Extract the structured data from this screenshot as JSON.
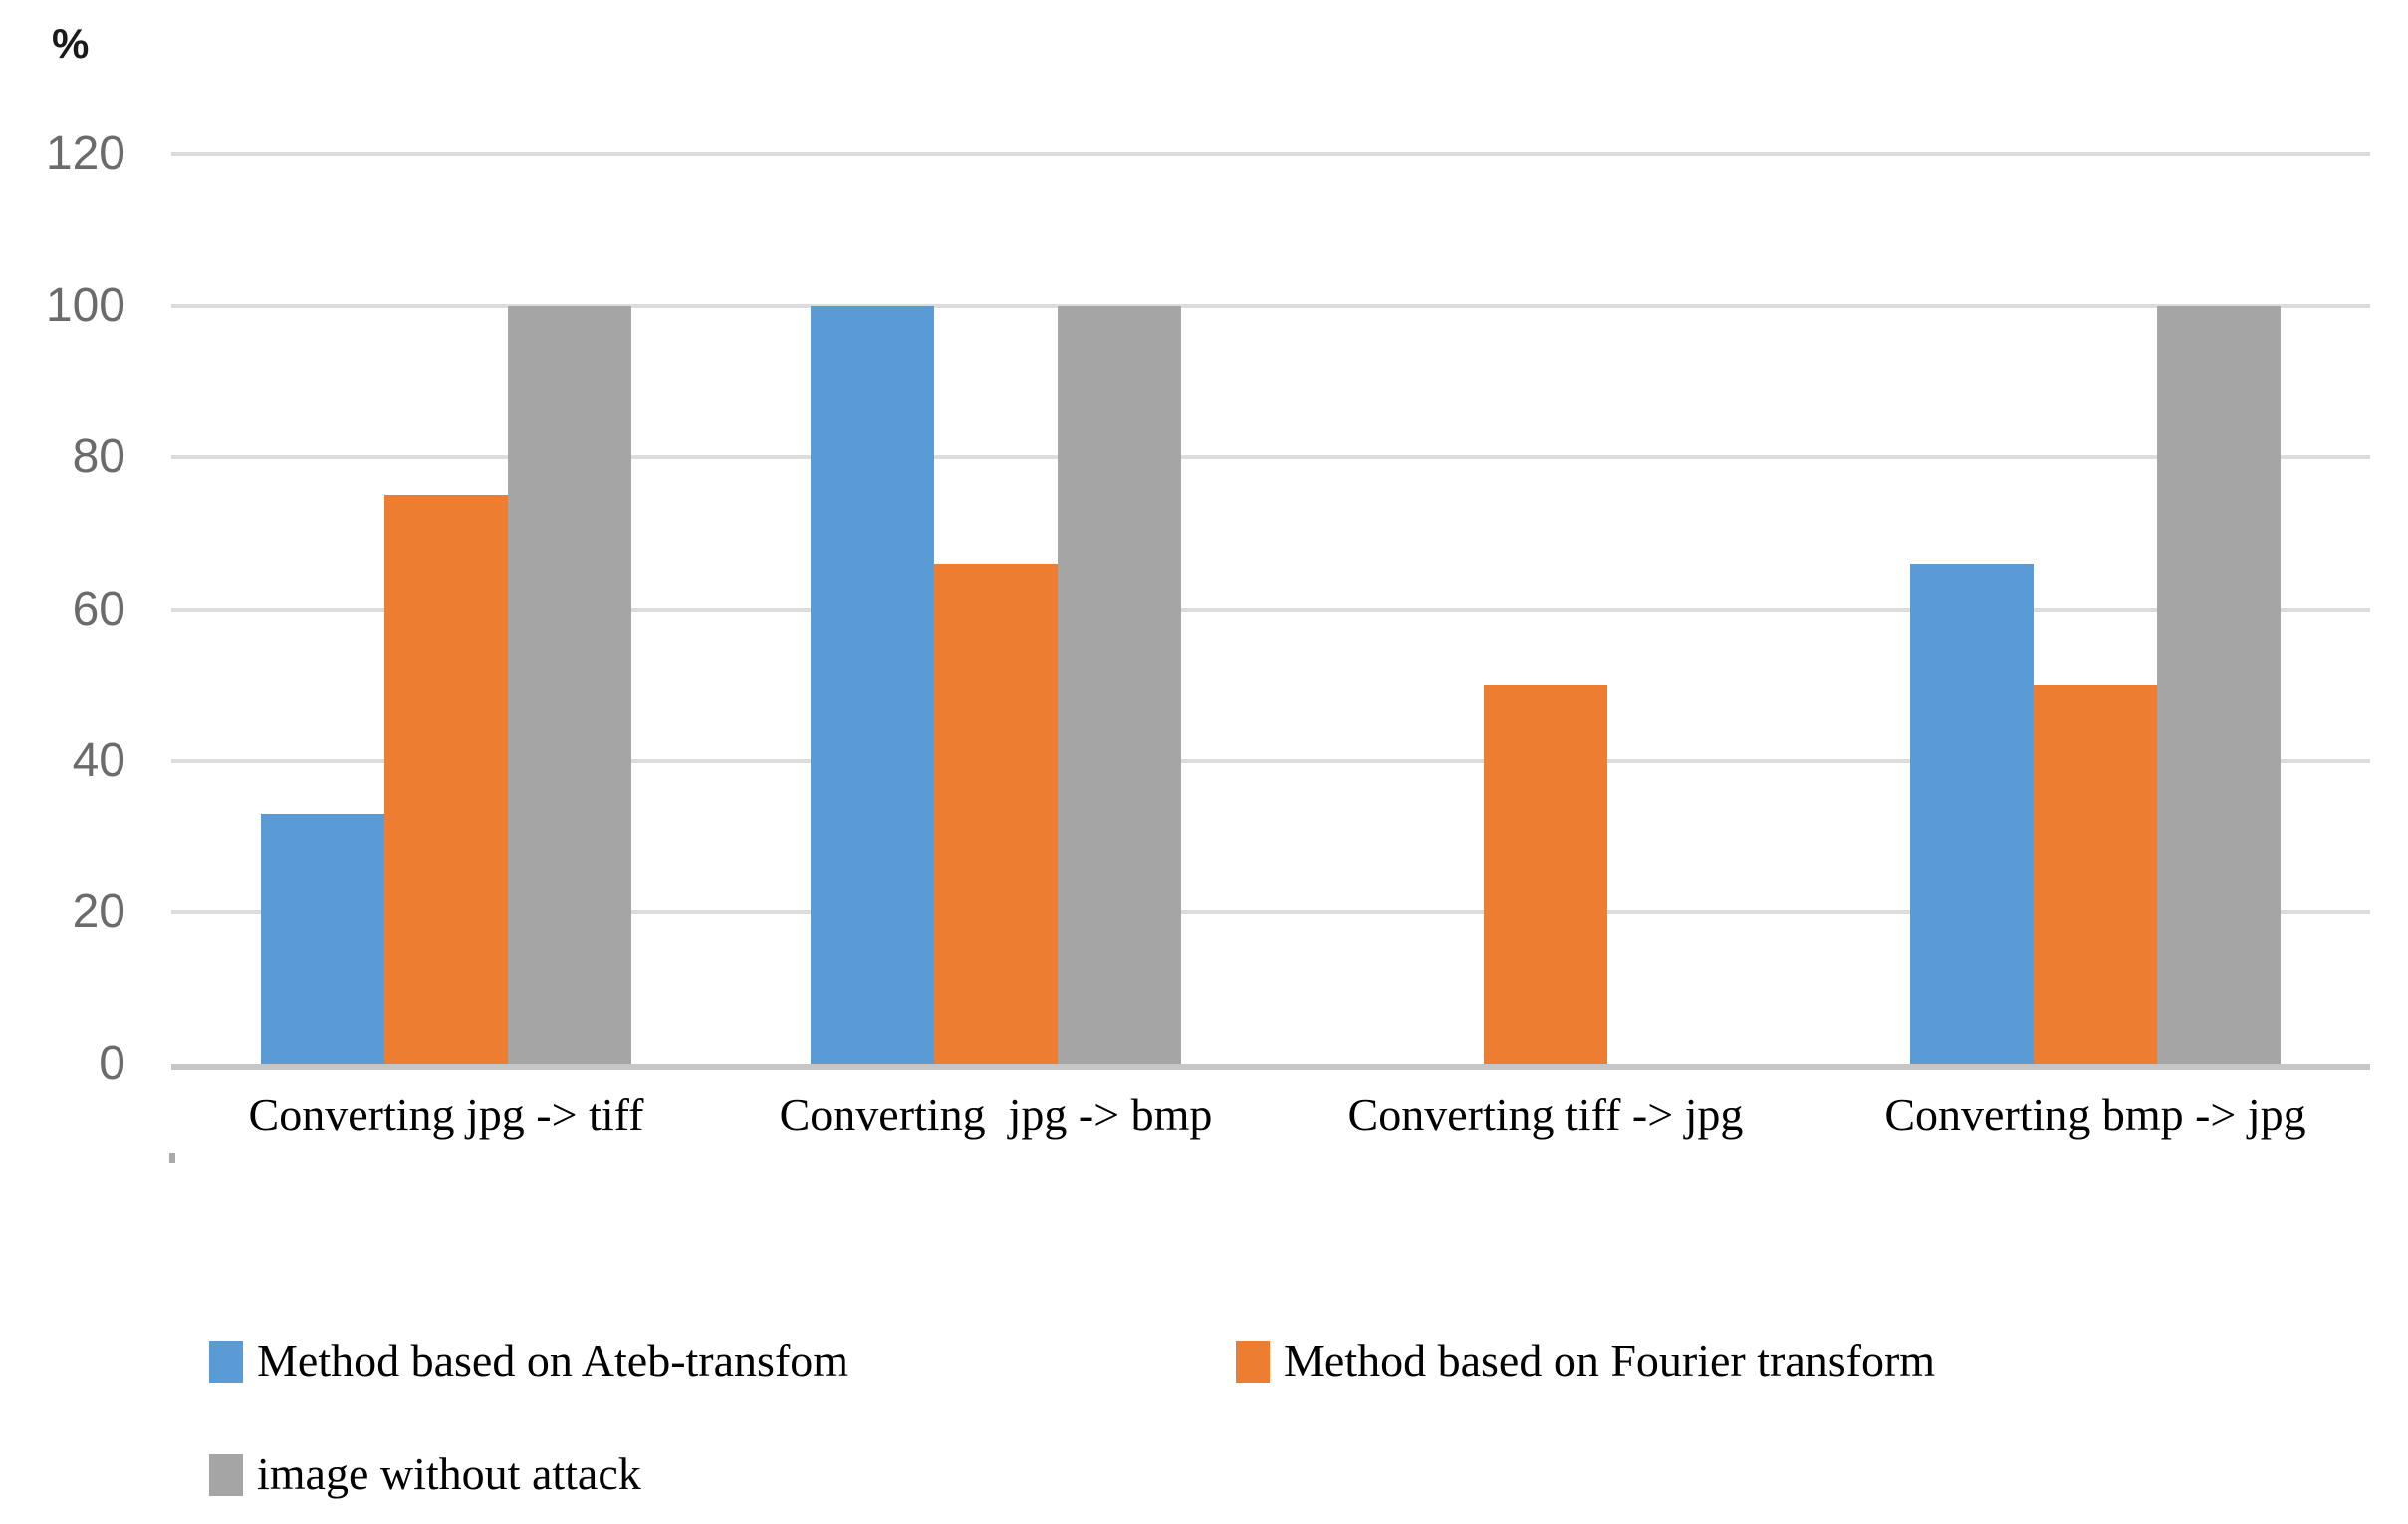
{
  "chart_data": {
    "type": "bar",
    "title": "",
    "y_axis": {
      "unit": "%",
      "min": 0,
      "max": 120,
      "tick_step": 20,
      "ticks": [
        0,
        20,
        40,
        60,
        80,
        100,
        120
      ]
    },
    "ylim": [
      0,
      120
    ],
    "grid": true,
    "legend_position": "bottom",
    "categories": [
      "Converting jpg -> tiff",
      "Converting  jpg -> bmp",
      "Converting tiff -> jpg",
      "Converting bmp -> jpg"
    ],
    "series": [
      {
        "name": "Method based on Ateb-transfom",
        "color": "#5B9BD5",
        "values": [
          33,
          100,
          0,
          66
        ]
      },
      {
        "name": "Method based on Fourier transform",
        "color": "#ED7D31",
        "values": [
          75,
          66,
          50,
          50
        ]
      },
      {
        "name": "image without attack",
        "color": "#A5A5A5",
        "values": [
          100,
          100,
          0,
          100
        ]
      }
    ]
  },
  "colors": {
    "gridline": "#dcdcdc",
    "axis_line": "#c6c6c6",
    "tick_text": "#6b6b6b",
    "label_text": "#000000"
  }
}
